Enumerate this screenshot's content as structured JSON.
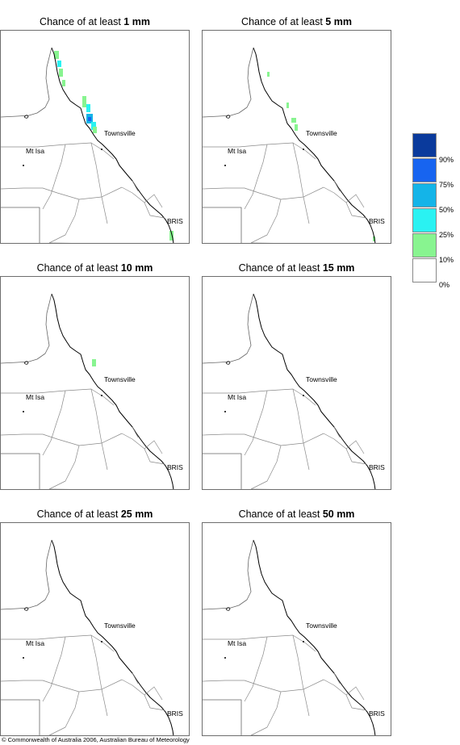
{
  "panels": [
    {
      "prefix": "Chance of at least ",
      "amount": "1 mm"
    },
    {
      "prefix": "Chance of at least ",
      "amount": "5 mm"
    },
    {
      "prefix": "Chance of at least ",
      "amount": "10 mm"
    },
    {
      "prefix": "Chance of at least ",
      "amount": "15 mm"
    },
    {
      "prefix": "Chance of at least ",
      "amount": "25 mm"
    },
    {
      "prefix": "Chance of at least ",
      "amount": "50 mm"
    }
  ],
  "places": {
    "townsville": "Townsville",
    "mt_isa": "Mt Isa",
    "brisbane": "BRIS"
  },
  "legend": {
    "ticks": [
      "90%",
      "75%",
      "50%",
      "25%",
      "10%",
      "0%"
    ],
    "colors": [
      "#0a3a9c",
      "#1764f0",
      "#14b4e8",
      "#2af2f2",
      "#88f490",
      "#ffffff"
    ]
  },
  "copyright": "© Commonwealth of Australia 2006, Australian Bureau of Meteorology"
}
